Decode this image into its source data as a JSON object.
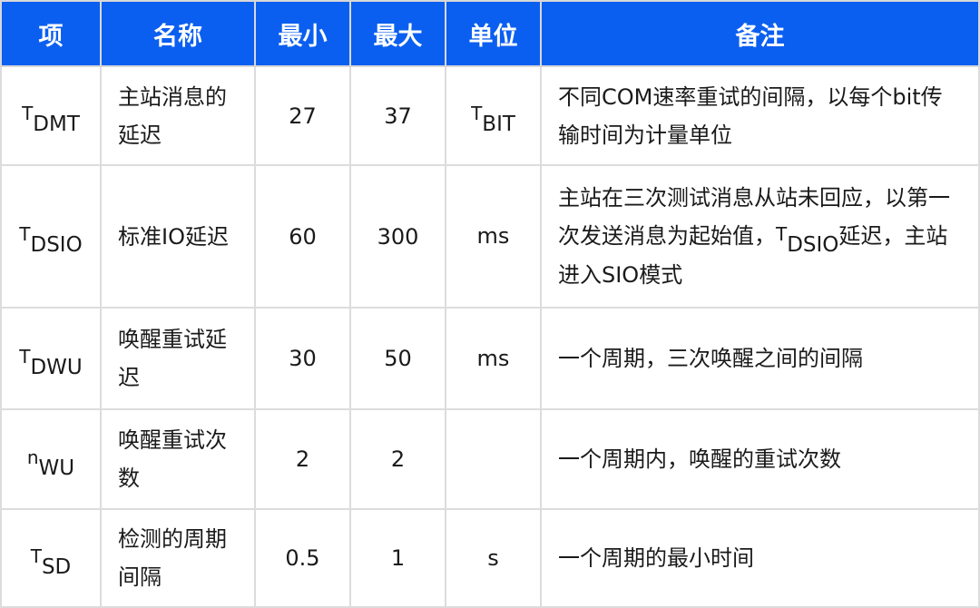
{
  "colors": {
    "header_bg": "#0b5ff0",
    "header_text": "#ffffff",
    "border": "#dcdcdc"
  },
  "headers": [
    "项",
    "名称",
    "最小",
    "最大",
    "单位",
    "备注"
  ],
  "rows": [
    {
      "sym_base": "T",
      "sym_sub": "DMT",
      "name": "主站消息的延迟",
      "min": "27",
      "max": "37",
      "unit_base": "T",
      "unit_sub": "BIT",
      "note": "不同COM速率重试的间隔，以每个bit传输时间为计量单位"
    },
    {
      "sym_base": "T",
      "sym_sub": "DSIO",
      "name": "标准IO延迟",
      "min": "60",
      "max": "300",
      "unit_base": "",
      "unit_sub": "ms",
      "note_pre": "主站在三次测试消息从站未回应，以第一次发送消息为起始值，",
      "note_sym_base": "T",
      "note_sym_sub": "DSIO",
      "note": "延迟，主站进入SIO模式"
    },
    {
      "sym_base": "T",
      "sym_sub": "DWU",
      "name": "唤醒重试延迟",
      "min": "30",
      "max": "50",
      "unit_base": "",
      "unit_sub": "ms",
      "note": "一个周期，三次唤醒之间的间隔"
    },
    {
      "sym_base": "n",
      "sym_sub": "WU",
      "name": "唤醒重试次数",
      "min": "2",
      "max": "2",
      "unit_base": "",
      "unit_sub": "",
      "note": "一个周期内，唤醒的重试次数"
    },
    {
      "sym_base": "T",
      "sym_sub": "SD",
      "name": "检测的周期间隔",
      "min": "0.5",
      "max": "1",
      "unit_base": "",
      "unit_sub": "s",
      "note": "一个周期的最小时间"
    }
  ]
}
